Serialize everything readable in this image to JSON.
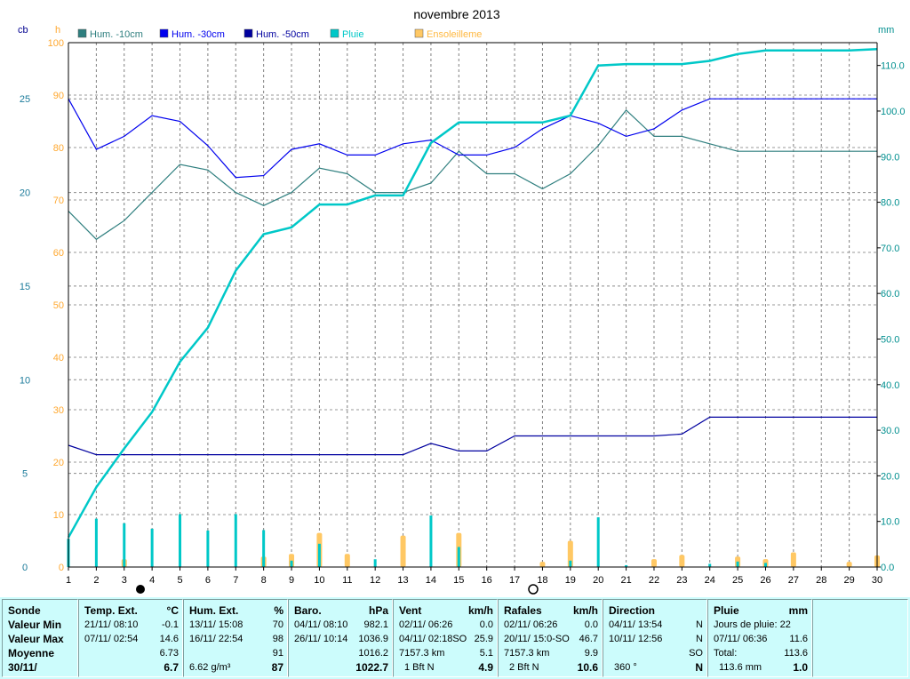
{
  "title": "novembre 2013",
  "axis_units": {
    "left_outer": "cb",
    "left_inner": "h",
    "right": "mm"
  },
  "legend": [
    {
      "label": "Hum. -10cm",
      "color": "#2f7f7f"
    },
    {
      "label": "Hum. -30cm",
      "color": "#0000ee"
    },
    {
      "label": "Hum. -50cm",
      "color": "#00009f"
    },
    {
      "label": "Pluie",
      "color": "#00c8c8"
    },
    {
      "label": "Ensoleilleme",
      "color": "#ffc864"
    }
  ],
  "chart_data": {
    "type": "line",
    "title": "novembre 2013",
    "x": [
      1,
      2,
      3,
      4,
      5,
      6,
      7,
      8,
      9,
      10,
      11,
      12,
      13,
      14,
      15,
      16,
      17,
      18,
      19,
      20,
      21,
      22,
      23,
      24,
      25,
      26,
      27,
      28,
      29,
      30
    ],
    "xlim": [
      1,
      30
    ],
    "left_outer_axis": {
      "unit": "cb",
      "lim": [
        0,
        28
      ],
      "ticks": [
        0,
        5,
        10,
        15,
        20,
        25
      ]
    },
    "left_inner_axis": {
      "unit": "h",
      "lim": [
        0,
        100
      ],
      "ticks": [
        0,
        10,
        20,
        30,
        40,
        50,
        60,
        70,
        80,
        90,
        100
      ]
    },
    "right_axis": {
      "unit": "mm",
      "lim": [
        0,
        115
      ],
      "ticks": [
        "0.0",
        "10.0",
        "20.0",
        "30.0",
        "40.0",
        "50.0",
        "60.0",
        "70.0",
        "80.0",
        "90.0",
        "100.0",
        "110.0"
      ]
    },
    "grid": true,
    "series": [
      {
        "name": "Hum. -10cm",
        "axis": "left_outer",
        "color": "#2f7f7f",
        "values": [
          19,
          17.5,
          18.5,
          20,
          21.5,
          21.2,
          20,
          19.3,
          20,
          21.3,
          21,
          20,
          20,
          20.5,
          22.2,
          21,
          21,
          20.2,
          21,
          22.5,
          24.4,
          23,
          23,
          22.6,
          22.2,
          22.2,
          22.2,
          22.2,
          22.2,
          22.2
        ]
      },
      {
        "name": "Hum. -30cm",
        "axis": "left_outer",
        "color": "#0000ee",
        "values": [
          25,
          22.3,
          23,
          24.1,
          23.8,
          22.5,
          20.8,
          20.9,
          22.3,
          22.6,
          22,
          22,
          22.6,
          22.8,
          22,
          22,
          22.4,
          23.4,
          24.1,
          23.7,
          23,
          23.4,
          24.4,
          25,
          25,
          25,
          25,
          25,
          25,
          25
        ]
      },
      {
        "name": "Hum. -50cm",
        "axis": "left_outer",
        "color": "#00009f",
        "values": [
          6.5,
          6,
          6,
          6,
          6,
          6,
          6,
          6,
          6,
          6,
          6,
          6,
          6,
          6.6,
          6.2,
          6.2,
          7,
          7,
          7,
          7,
          7,
          7,
          7.1,
          8,
          8,
          8,
          8,
          8,
          8,
          8
        ]
      },
      {
        "name": "Pluie",
        "axis": "right",
        "color": "#00c8c8",
        "values": [
          6.5,
          17.5,
          26,
          34,
          45,
          52.5,
          65,
          73,
          74.5,
          79.5,
          79.5,
          81.5,
          81.5,
          93,
          97.5,
          97.5,
          97.5,
          97.5,
          99,
          110,
          110.3,
          110.3,
          110.3,
          111,
          112.5,
          113.3,
          113.3,
          113.3,
          113.3,
          113.6
        ]
      }
    ],
    "daily_rain_mm": [
      6.2,
      10.6,
      9.6,
      8.4,
      11.6,
      8.0,
      11.6,
      8.1,
      1.4,
      5.1,
      0,
      1.7,
      0,
      11.3,
      4.4,
      0,
      0,
      0,
      1.4,
      10.9,
      0.4,
      0,
      0,
      0.7,
      1.2,
      0.9,
      0,
      0,
      0,
      0
    ],
    "sunshine_h": [
      0,
      0,
      1.5,
      0,
      0,
      0,
      0,
      2,
      2.5,
      6.5,
      2.5,
      0,
      6,
      0,
      6.5,
      0,
      0,
      1,
      5,
      0,
      0,
      1.5,
      2.3,
      0,
      2,
      1.5,
      2.8,
      0,
      1,
      2.2
    ]
  },
  "stats": {
    "labels": {
      "sonde": "Sonde",
      "min": "Valeur Min",
      "max": "Valeur Max",
      "moy": "Moyenne",
      "date": "30/11/"
    },
    "temp": {
      "title": "Temp. Ext.",
      "unit": "°C",
      "min_date": "21/11/  08:10",
      "min_val": "-0.1",
      "max_date": "07/11/  02:54",
      "max_val": "14.6",
      "moy": "6.73",
      "cur": "6.7"
    },
    "hum": {
      "title": "Hum. Ext.",
      "unit": "%",
      "min_date": "13/11/  15:08",
      "min_val": "70",
      "max_date": "16/11/  22:54",
      "max_val": "98",
      "moy": "91",
      "extra": "6.62 g/m³",
      "cur": "87"
    },
    "baro": {
      "title": "Baro.",
      "unit": "hPa",
      "min_date": "04/11/  08:10",
      "min_val": "982.1",
      "max_date": "26/11/  10:14",
      "max_val": "1036.9",
      "moy": "1016.2",
      "cur": "1022.7"
    },
    "vent": {
      "title": "Vent",
      "unit": "km/h",
      "min_date": "02/11/  06:26",
      "min_val": "0.0",
      "max_date": "04/11/  02:18SO",
      "max_val": "25.9",
      "dist": "7157.3 km",
      "moy": "5.1",
      "bft": "1 Bft N",
      "cur": "4.9"
    },
    "rafales": {
      "title": "Rafales",
      "unit": "km/h",
      "min_date": "02/11/  06:26",
      "min_val": "0.0",
      "max_date": "20/11/  15:0-SO",
      "max_val": "46.7",
      "dist": "7157.3 km",
      "moy": "9.9",
      "bft": "2 Bft N",
      "cur": "10.6"
    },
    "dir": {
      "title": "Direction",
      "min_date": "04/11/  13:54",
      "min_val": "N",
      "max_date": "10/11/  12:56",
      "max_val": "N",
      "moy": "SO",
      "deg": "360 °",
      "cur": "N"
    },
    "pluie": {
      "title": "Pluie",
      "unit": "mm",
      "jours": "Jours de pluie: 22",
      "max_date": "07/11/  06:36",
      "max_val": "11.6",
      "total_label": "Total:",
      "total": "113.6",
      "cur_total": "113.6 mm",
      "cur": "1.0"
    }
  }
}
